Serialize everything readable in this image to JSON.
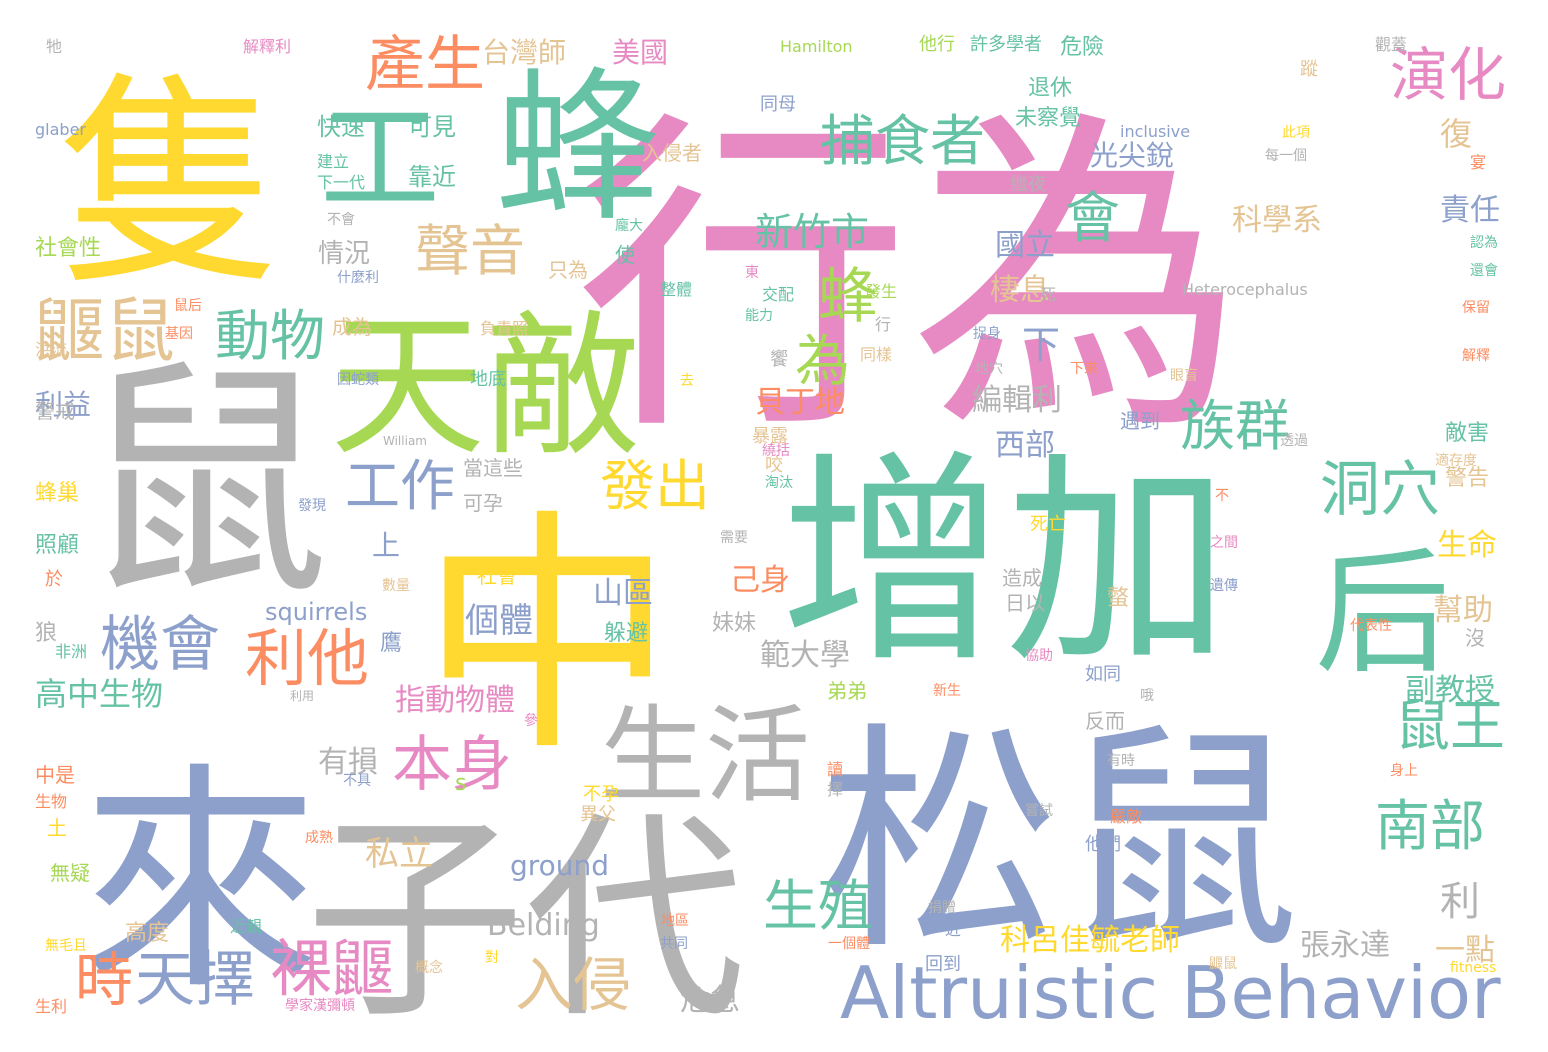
{
  "palette": {
    "pink": "#e78ac3",
    "teal": "#66c2a5",
    "lavender": "#8da0cb",
    "yellow": "#ffd92f",
    "gray": "#b3b3b3",
    "green": "#a6d854",
    "orange": "#fc8d62",
    "tan": "#e5c494"
  },
  "words": [
    {
      "text": "行為",
      "color": "pink"
    },
    {
      "text": "隻",
      "color": "yellow"
    },
    {
      "text": "鼠",
      "color": "gray"
    },
    {
      "text": "中",
      "color": "yellow"
    },
    {
      "text": "增加",
      "color": "teal"
    },
    {
      "text": "來",
      "color": "lavender"
    },
    {
      "text": "松鼠",
      "color": "lavender"
    },
    {
      "text": "子代",
      "color": "gray"
    },
    {
      "text": "天敵",
      "color": "green"
    },
    {
      "text": "蜂",
      "color": "teal"
    },
    {
      "text": "工",
      "color": "teal"
    },
    {
      "text": "后",
      "color": "teal"
    },
    {
      "text": "Altruistic Behavior",
      "color": "lavender"
    },
    {
      "text": "生活",
      "color": "gray"
    },
    {
      "text": "產生",
      "color": "orange"
    },
    {
      "text": "捕食者",
      "color": "teal"
    },
    {
      "text": "演化",
      "color": "pink"
    },
    {
      "text": "聲音",
      "color": "tan"
    },
    {
      "text": "鼴鼠",
      "color": "tan"
    },
    {
      "text": "動物",
      "color": "teal"
    },
    {
      "text": "蜂",
      "color": "green"
    },
    {
      "text": "為",
      "color": "green"
    },
    {
      "text": "會",
      "color": "teal"
    },
    {
      "text": "族群",
      "color": "teal"
    },
    {
      "text": "發出",
      "color": "yellow"
    },
    {
      "text": "洞穴",
      "color": "teal"
    },
    {
      "text": "工作",
      "color": "lavender"
    },
    {
      "text": "機會",
      "color": "lavender"
    },
    {
      "text": "利他",
      "color": "orange"
    },
    {
      "text": "本身",
      "color": "pink"
    },
    {
      "text": "鼠王",
      "color": "teal"
    },
    {
      "text": "南部",
      "color": "teal"
    },
    {
      "text": "生殖",
      "color": "teal"
    },
    {
      "text": "入侵",
      "color": "tan"
    },
    {
      "text": "裸鼴",
      "color": "pink"
    },
    {
      "text": "時",
      "color": "orange"
    },
    {
      "text": "天擇",
      "color": "lavender"
    },
    {
      "text": "新竹市",
      "color": "teal"
    },
    {
      "text": "台灣師",
      "color": "tan"
    },
    {
      "text": "美國",
      "color": "pink"
    },
    {
      "text": "復",
      "color": "tan"
    },
    {
      "text": "責任",
      "color": "lavender"
    },
    {
      "text": "科學系",
      "color": "tan"
    },
    {
      "text": "國立",
      "color": "lavender"
    },
    {
      "text": "棲息",
      "color": "tan"
    },
    {
      "text": "下",
      "color": "lavender"
    },
    {
      "text": "編輯利",
      "color": "gray"
    },
    {
      "text": "西部",
      "color": "lavender"
    },
    {
      "text": "貝丁地",
      "color": "orange"
    },
    {
      "text": "光尖銳",
      "color": "lavender"
    },
    {
      "text": "情況",
      "color": "gray"
    },
    {
      "text": "山區",
      "color": "lavender"
    },
    {
      "text": "個體",
      "color": "lavender"
    },
    {
      "text": "範大學",
      "color": "gray"
    },
    {
      "text": "副教授",
      "color": "teal"
    },
    {
      "text": "生命",
      "color": "yellow"
    },
    {
      "text": "幫助",
      "color": "tan"
    },
    {
      "text": "己身",
      "color": "orange"
    },
    {
      "text": "指動物體",
      "color": "pink"
    },
    {
      "text": "高中生物",
      "color": "teal"
    },
    {
      "text": "有損",
      "color": "gray"
    },
    {
      "text": "私立",
      "color": "tan"
    },
    {
      "text": "利",
      "color": "gray"
    },
    {
      "text": "科呂佳毓老師",
      "color": "yellow"
    },
    {
      "text": "張永達",
      "color": "gray"
    },
    {
      "text": "一點",
      "color": "tan"
    },
    {
      "text": "危急",
      "color": "gray"
    },
    {
      "text": "Belding",
      "color": "gray"
    },
    {
      "text": "ground",
      "color": "lavender"
    },
    {
      "text": "squirrels",
      "color": "lavender"
    },
    {
      "text": "利益",
      "color": "lavender"
    },
    {
      "text": "上",
      "color": "lavender"
    },
    {
      "text": "快速",
      "color": "teal"
    },
    {
      "text": "可見",
      "color": "teal"
    },
    {
      "text": "靠近",
      "color": "teal"
    },
    {
      "text": "入侵者",
      "color": "tan"
    },
    {
      "text": "退休",
      "color": "teal"
    },
    {
      "text": "未察覺",
      "color": "teal"
    },
    {
      "text": "危險",
      "color": "teal"
    },
    {
      "text": "許多學者",
      "color": "teal"
    },
    {
      "text": "他行",
      "color": "green"
    },
    {
      "text": "Hamilton",
      "color": "green"
    },
    {
      "text": "解釋利",
      "color": "pink"
    },
    {
      "text": "牠",
      "color": "gray"
    },
    {
      "text": "glaber",
      "color": "lavender"
    },
    {
      "text": "建立",
      "color": "teal"
    },
    {
      "text": "下一代",
      "color": "teal"
    },
    {
      "text": "社會性",
      "color": "green"
    },
    {
      "text": "不會",
      "color": "gray"
    },
    {
      "text": "什麼利",
      "color": "lavender"
    },
    {
      "text": "只為",
      "color": "tan"
    },
    {
      "text": "使",
      "color": "teal"
    },
    {
      "text": "龐大",
      "color": "teal"
    },
    {
      "text": "同母",
      "color": "lavender"
    },
    {
      "text": "繼夜",
      "color": "gray"
    },
    {
      "text": "inclusive",
      "color": "lavender"
    },
    {
      "text": "此項",
      "color": "yellow"
    },
    {
      "text": "每一個",
      "color": "gray"
    },
    {
      "text": "宴",
      "color": "orange"
    },
    {
      "text": "認為",
      "color": "teal"
    },
    {
      "text": "還會",
      "color": "teal"
    },
    {
      "text": "觀蓋",
      "color": "gray"
    },
    {
      "text": "蹤",
      "color": "tan"
    },
    {
      "text": "Heterocephalus",
      "color": "gray"
    },
    {
      "text": "交配",
      "color": "teal"
    },
    {
      "text": "能力",
      "color": "teal"
    },
    {
      "text": "整體",
      "color": "teal"
    },
    {
      "text": "東",
      "color": "pink"
    },
    {
      "text": "發生",
      "color": "green"
    },
    {
      "text": "行",
      "color": "gray"
    },
    {
      "text": "同樣",
      "color": "tan"
    },
    {
      "text": "死",
      "color": "gray"
    },
    {
      "text": "捉身",
      "color": "lavender"
    },
    {
      "text": "地穴",
      "color": "gray"
    },
    {
      "text": "下來",
      "color": "orange"
    },
    {
      "text": "眼盲",
      "color": "tan"
    },
    {
      "text": "透過",
      "color": "gray"
    },
    {
      "text": "保留",
      "color": "orange"
    },
    {
      "text": "解釋",
      "color": "orange"
    },
    {
      "text": "敵害",
      "color": "teal"
    },
    {
      "text": "適存度",
      "color": "tan"
    },
    {
      "text": "警告",
      "color": "tan"
    },
    {
      "text": "成為",
      "color": "tan"
    },
    {
      "text": "負責照",
      "color": "tan"
    },
    {
      "text": "因蛇類",
      "color": "lavender"
    },
    {
      "text": "地底",
      "color": "teal"
    },
    {
      "text": "去",
      "color": "yellow"
    },
    {
      "text": "饗",
      "color": "gray"
    },
    {
      "text": "遇到",
      "color": "lavender"
    },
    {
      "text": "暴露",
      "color": "tan"
    },
    {
      "text": "咬",
      "color": "tan"
    },
    {
      "text": "繞括",
      "color": "pink"
    },
    {
      "text": "淘汰",
      "color": "teal"
    },
    {
      "text": "需要",
      "color": "gray"
    },
    {
      "text": "不",
      "color": "orange"
    },
    {
      "text": "之間",
      "color": "pink"
    },
    {
      "text": "遺傳",
      "color": "lavender"
    },
    {
      "text": "代表性",
      "color": "orange"
    },
    {
      "text": "沒",
      "color": "gray"
    },
    {
      "text": "死亡",
      "color": "yellow"
    },
    {
      "text": "造成",
      "color": "gray"
    },
    {
      "text": "日以",
      "color": "gray"
    },
    {
      "text": "螫",
      "color": "tan"
    },
    {
      "text": "協助",
      "color": "pink"
    },
    {
      "text": "如同",
      "color": "lavender"
    },
    {
      "text": "哦",
      "color": "gray"
    },
    {
      "text": "反而",
      "color": "gray"
    },
    {
      "text": "有時",
      "color": "gray"
    },
    {
      "text": "身上",
      "color": "orange"
    },
    {
      "text": "他們",
      "color": "lavender"
    },
    {
      "text": "嚴敵",
      "color": "orange"
    },
    {
      "text": "嘗試",
      "color": "gray"
    },
    {
      "text": "弟弟",
      "color": "green"
    },
    {
      "text": "新生",
      "color": "orange"
    },
    {
      "text": "妹妹",
      "color": "gray"
    },
    {
      "text": "躲避",
      "color": "teal"
    },
    {
      "text": "社會",
      "color": "yellow"
    },
    {
      "text": "當這些",
      "color": "gray"
    },
    {
      "text": "可孕",
      "color": "gray"
    },
    {
      "text": "鷹",
      "color": "lavender"
    },
    {
      "text": "數量",
      "color": "tan"
    },
    {
      "text": "參",
      "color": "pink"
    },
    {
      "text": "不孕",
      "color": "yellow"
    },
    {
      "text": "異父",
      "color": "tan"
    },
    {
      "text": "s",
      "color": "green"
    },
    {
      "text": "讀",
      "color": "orange"
    },
    {
      "text": "擇",
      "color": "gray"
    },
    {
      "text": "成熟",
      "color": "orange"
    },
    {
      "text": "捐贈",
      "color": "gray"
    },
    {
      "text": "一個體",
      "color": "orange"
    },
    {
      "text": "近",
      "color": "lavender"
    },
    {
      "text": "回到",
      "color": "lavender"
    },
    {
      "text": "地區",
      "color": "orange"
    },
    {
      "text": "共同",
      "color": "lavender"
    },
    {
      "text": "對",
      "color": "yellow"
    },
    {
      "text": "概念",
      "color": "tan"
    },
    {
      "text": "學家漢彌頓",
      "color": "pink"
    },
    {
      "text": "鼴鼠",
      "color": "tan"
    },
    {
      "text": "fitness",
      "color": "yellow"
    },
    {
      "text": "William",
      "color": "gray"
    },
    {
      "text": "鼠后",
      "color": "orange"
    },
    {
      "text": "基因",
      "color": "orange"
    },
    {
      "text": "洪流",
      "color": "tan"
    },
    {
      "text": "警戒",
      "color": "gray"
    },
    {
      "text": "蜂巢",
      "color": "yellow"
    },
    {
      "text": "照顧",
      "color": "teal"
    },
    {
      "text": "發現",
      "color": "lavender"
    },
    {
      "text": "於",
      "color": "orange"
    },
    {
      "text": "狼",
      "color": "gray"
    },
    {
      "text": "非洲",
      "color": "teal"
    },
    {
      "text": "利用",
      "color": "gray"
    },
    {
      "text": "中是",
      "color": "orange"
    },
    {
      "text": "生物",
      "color": "orange"
    },
    {
      "text": "不具",
      "color": "lavender"
    },
    {
      "text": "土",
      "color": "yellow"
    },
    {
      "text": "無疑",
      "color": "green"
    },
    {
      "text": "高度",
      "color": "tan"
    },
    {
      "text": "近親",
      "color": "teal"
    },
    {
      "text": "無毛且",
      "color": "yellow"
    },
    {
      "text": "生利",
      "color": "orange"
    }
  ]
}
